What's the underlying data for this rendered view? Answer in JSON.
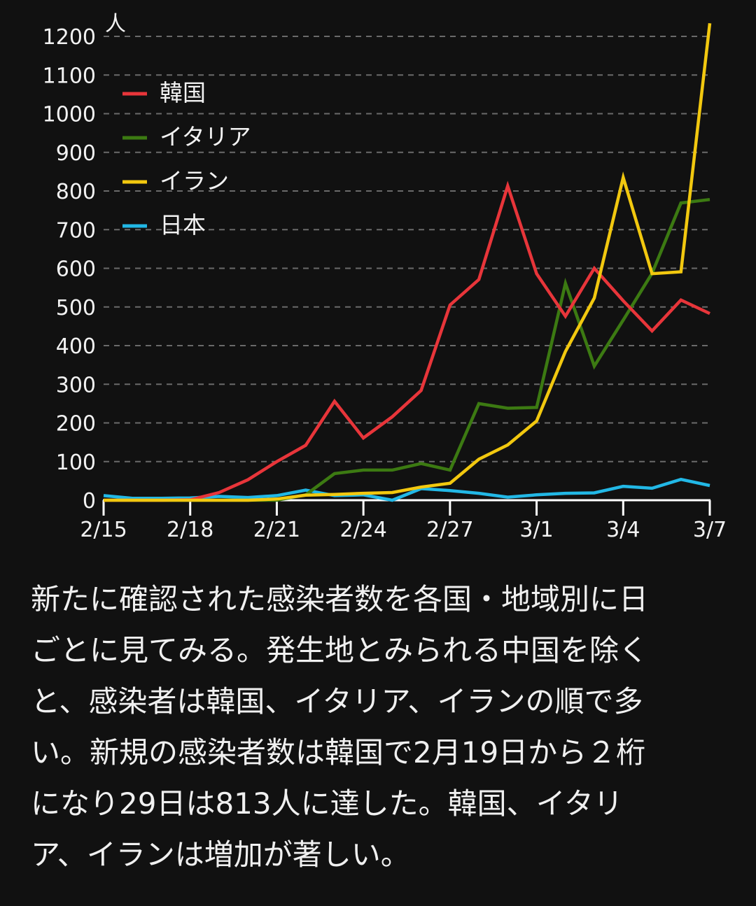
{
  "chart_data": {
    "type": "line",
    "title": "",
    "ylabel": "人",
    "xlabel": "",
    "ylim": [
      0,
      1200
    ],
    "yticks": [
      0,
      100,
      200,
      300,
      400,
      500,
      600,
      700,
      800,
      900,
      1000,
      1100,
      1200
    ],
    "grid": true,
    "legend_position": "top-left",
    "x": [
      "2/15",
      "2/16",
      "2/17",
      "2/18",
      "2/19",
      "2/20",
      "2/21",
      "2/22",
      "2/23",
      "2/24",
      "2/25",
      "2/26",
      "2/27",
      "2/28",
      "2/29",
      "3/1",
      "3/2",
      "3/3",
      "3/4",
      "3/5",
      "3/6",
      "3/7"
    ],
    "xtick_labels": [
      "2/15",
      "2/18",
      "2/21",
      "2/24",
      "2/27",
      "3/1",
      "3/4",
      "3/7"
    ],
    "series": [
      {
        "name": "韓国",
        "color": "#e8353a",
        "values": [
          0,
          0,
          0,
          1,
          20,
          53,
          100,
          142,
          256,
          161,
          216,
          284,
          505,
          571,
          813,
          586,
          476,
          600,
          516,
          438,
          518,
          483
        ]
      },
      {
        "name": "イタリア",
        "color": "#3c7a12",
        "values": [
          0,
          0,
          0,
          0,
          0,
          0,
          0,
          14,
          69,
          78,
          78,
          95,
          78,
          250,
          238,
          240,
          561,
          347,
          466,
          587,
          769,
          778
        ]
      },
      {
        "name": "イラン",
        "color": "#f2c80f",
        "values": [
          0,
          0,
          0,
          0,
          0,
          0,
          3,
          13,
          15,
          18,
          20,
          34,
          44,
          106,
          143,
          205,
          385,
          523,
          835,
          586,
          591,
          1234
        ]
      },
      {
        "name": "日本",
        "color": "#22b8e6",
        "values": [
          12,
          5,
          5,
          6,
          10,
          7,
          12,
          26,
          12,
          14,
          0,
          30,
          25,
          18,
          8,
          14,
          18,
          19,
          36,
          31,
          54,
          38
        ]
      }
    ]
  },
  "caption": {
    "lines": [
      "新たに確認された感染者数を各国・地域別に日",
      "ごとに見てみる。発生地とみられる中国を除く",
      "と、感染者は韓国、イタリア、イランの順で多",
      "い。新規の感染者数は韓国で2月19日から２桁",
      "になり29日は813人に達した。韓国、イタリ",
      "ア、イランは増加が著しい。"
    ]
  }
}
